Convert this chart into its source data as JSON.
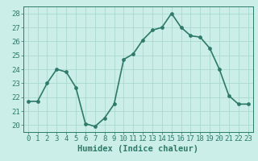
{
  "x": [
    0,
    1,
    2,
    3,
    4,
    5,
    6,
    7,
    8,
    9,
    10,
    11,
    12,
    13,
    14,
    15,
    16,
    17,
    18,
    19,
    20,
    21,
    22,
    23
  ],
  "y": [
    21.7,
    21.7,
    23.0,
    24.0,
    23.8,
    22.7,
    20.1,
    19.9,
    20.5,
    21.5,
    24.7,
    25.1,
    26.1,
    26.8,
    27.0,
    28.0,
    27.0,
    26.4,
    26.3,
    25.5,
    24.0,
    22.1,
    21.5,
    21.5
  ],
  "color": "#2d7a6a",
  "bg_color": "#cceee8",
  "grid_color": "#aad8d0",
  "xlabel": "Humidex (Indice chaleur)",
  "ylim": [
    19.5,
    28.5
  ],
  "xlim": [
    -0.5,
    23.5
  ],
  "yticks": [
    20,
    21,
    22,
    23,
    24,
    25,
    26,
    27,
    28
  ],
  "xticks": [
    0,
    1,
    2,
    3,
    4,
    5,
    6,
    7,
    8,
    9,
    10,
    11,
    12,
    13,
    14,
    15,
    16,
    17,
    18,
    19,
    20,
    21,
    22,
    23
  ],
  "label_fontsize": 7.5,
  "tick_fontsize": 6.5,
  "linewidth": 1.2,
  "markersize": 2.8
}
